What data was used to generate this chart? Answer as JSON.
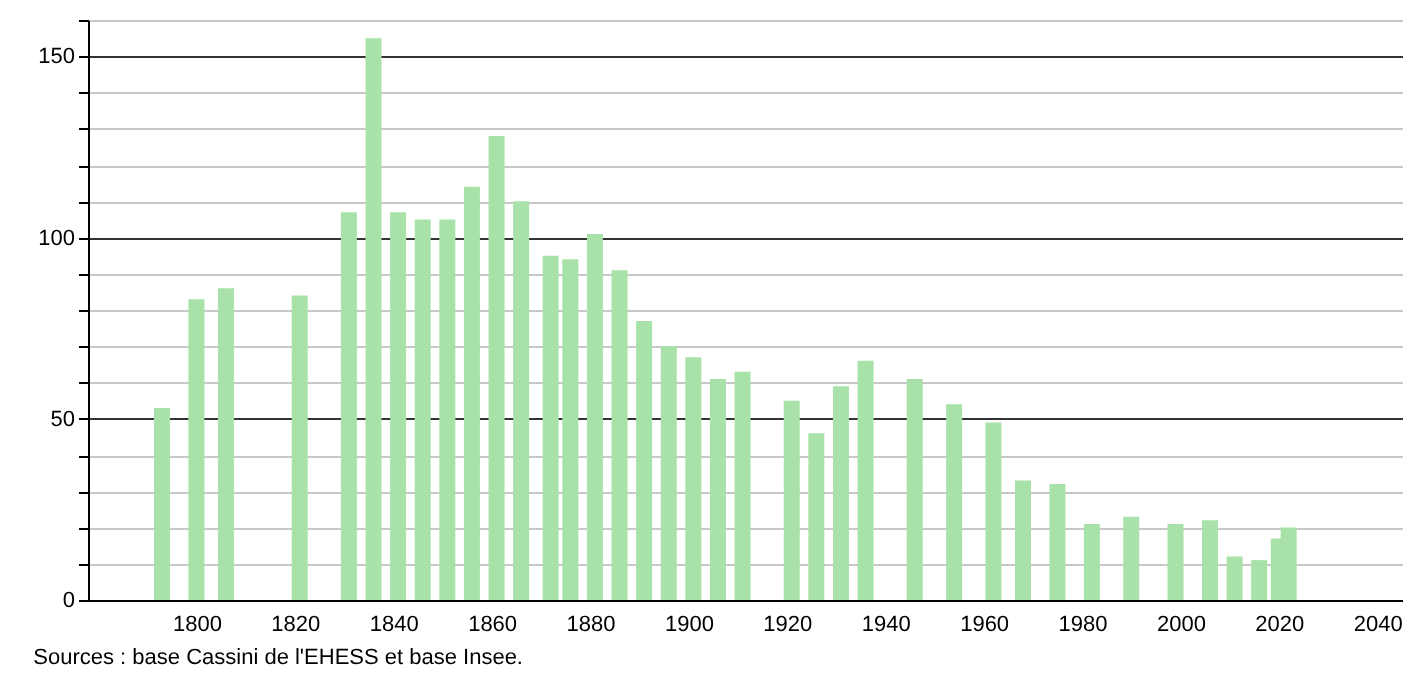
{
  "chart_data": {
    "type": "bar",
    "x": [
      1793,
      1800,
      1806,
      1821,
      1831,
      1836,
      1841,
      1846,
      1851,
      1856,
      1861,
      1866,
      1872,
      1876,
      1881,
      1886,
      1891,
      1896,
      1901,
      1906,
      1911,
      1921,
      1926,
      1931,
      1936,
      1946,
      1954,
      1962,
      1968,
      1975,
      1982,
      1990,
      1999,
      2006,
      2011,
      2016,
      2020,
      2022
    ],
    "values": [
      53,
      83,
      86,
      84,
      107,
      155,
      107,
      105,
      105,
      114,
      128,
      110,
      95,
      94,
      101,
      91,
      77,
      70,
      67,
      61,
      63,
      55,
      46,
      59,
      66,
      61,
      54,
      49,
      33,
      32,
      21,
      23,
      21,
      22,
      12,
      11,
      17,
      20
    ],
    "color": "#a8e2a8",
    "xlim": [
      1780,
      2043
    ],
    "xticks": [
      1800,
      1820,
      1840,
      1860,
      1880,
      1900,
      1920,
      1940,
      1960,
      1980,
      2000,
      2020,
      2040
    ],
    "ylim": [
      0,
      160
    ],
    "yticks": [
      0,
      {
        "value": 10,
        "label": null
      },
      {
        "value": 20,
        "label": null
      },
      {
        "value": 30,
        "label": null
      },
      {
        "value": 40,
        "label": null
      },
      50,
      {
        "value": 60,
        "label": null
      },
      {
        "value": 70,
        "label": null
      },
      {
        "value": 80,
        "label": null
      },
      {
        "value": 90,
        "label": null
      },
      100,
      {
        "value": 110,
        "label": null
      },
      {
        "value": 120,
        "label": null
      },
      {
        "value": 130,
        "label": null
      },
      {
        "value": 140,
        "label": null
      },
      150,
      {
        "value": 160,
        "label": null
      }
    ],
    "grid": "y",
    "annotations": [
      "Sources : base Cassini de l'EHESS et base Insee."
    ]
  }
}
